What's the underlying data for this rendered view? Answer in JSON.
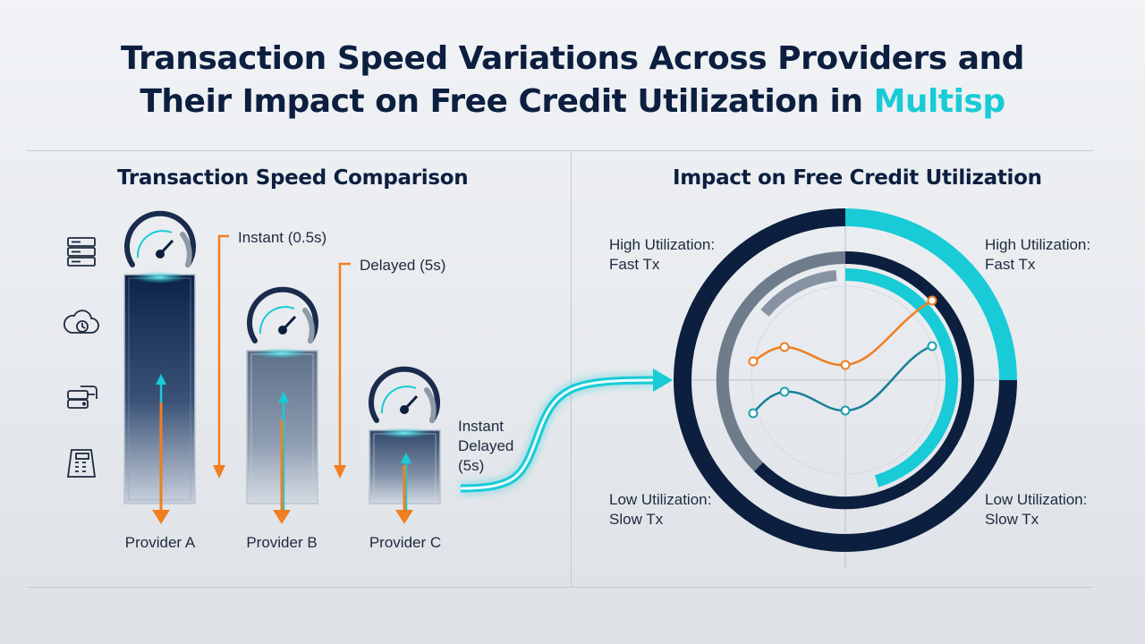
{
  "title": {
    "line1": "Transaction Speed Variations Across Providers and",
    "line2_main": "Their Impact on Free Credit Utilization in ",
    "line2_accent": "Multisp"
  },
  "left_panel": {
    "title": "Transaction Speed Comparison",
    "side_icons": [
      "server-icon",
      "cloud-clock-icon",
      "servers-icon",
      "payment-terminal-icon"
    ],
    "providers": [
      {
        "name": "Provider A",
        "speed_level": 1.0
      },
      {
        "name": "Provider B",
        "speed_level": 0.62
      },
      {
        "name": "Provider C",
        "speed_level": 0.35
      }
    ],
    "annotations": {
      "instant": "Instant (0.5s)",
      "delayed": "Delayed (5s)",
      "legend_line1": "Instant",
      "legend_line2": "Delayed",
      "legend_line3": "(5s)"
    }
  },
  "right_panel": {
    "title": "Impact on Free Credit Utilization",
    "quadrants": {
      "top_left": [
        "High Utilization:",
        "Fast Tx"
      ],
      "top_right": [
        "High Utilization:",
        "Fast Tx"
      ],
      "bottom_left": [
        "Low Utilization:",
        "Slow Tx"
      ],
      "bottom_right": [
        "Low Utilization:",
        "Slow Tx"
      ]
    }
  },
  "colors": {
    "navy": "#0c1f3f",
    "cyan": "#18cbd6",
    "orange": "#f07f22",
    "teal_line": "#1b7f99",
    "grey_ring": "#6f7c8c"
  }
}
